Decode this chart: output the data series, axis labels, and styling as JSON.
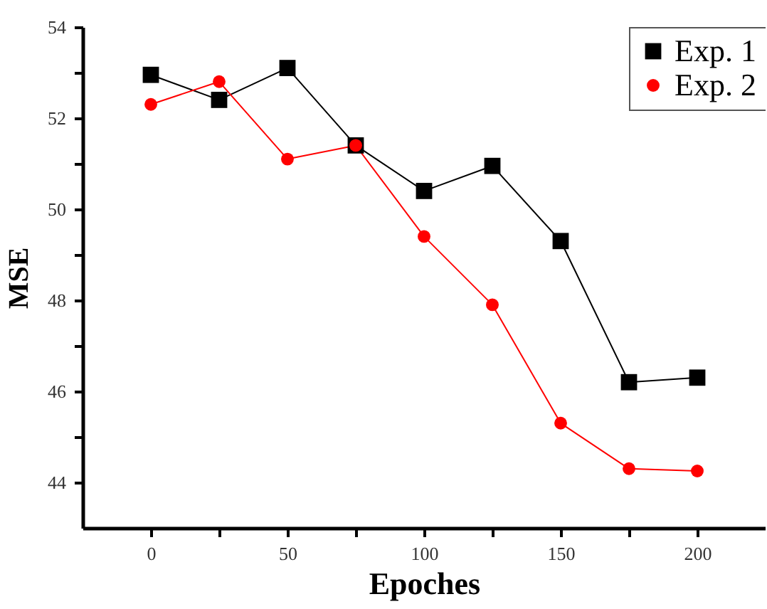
{
  "chart_data": {
    "type": "line",
    "xlabel": "Epoches",
    "ylabel": "MSE",
    "x": [
      0,
      25,
      50,
      75,
      100,
      125,
      150,
      175,
      200
    ],
    "series": [
      {
        "name": "Exp. 1",
        "color": "#000000",
        "marker": "square",
        "values": [
          52.95,
          52.4,
          53.1,
          51.4,
          50.4,
          50.95,
          49.3,
          46.2,
          46.3
        ]
      },
      {
        "name": "Exp. 2",
        "color": "#ff0000",
        "marker": "circle",
        "values": [
          52.3,
          52.8,
          51.1,
          51.4,
          49.4,
          47.9,
          45.3,
          44.3,
          44.25
        ]
      }
    ],
    "xlim": [
      -25,
      225
    ],
    "xticks": [
      0,
      {
        "value": 25,
        "label": null
      },
      50,
      {
        "value": 75,
        "label": null
      },
      100,
      {
        "value": 125,
        "label": null
      },
      150,
      {
        "value": 175,
        "label": null
      },
      200
    ],
    "ylim": [
      43,
      54
    ],
    "yticks": [
      44,
      {
        "value": 45,
        "label": null
      },
      46,
      {
        "value": 47,
        "label": null
      },
      48,
      {
        "value": 49,
        "label": null
      },
      50,
      {
        "value": 51,
        "label": null
      },
      52,
      {
        "value": 53,
        "label": null
      },
      54
    ],
    "grid": false,
    "legend": "top right",
    "line_style": "solid"
  }
}
